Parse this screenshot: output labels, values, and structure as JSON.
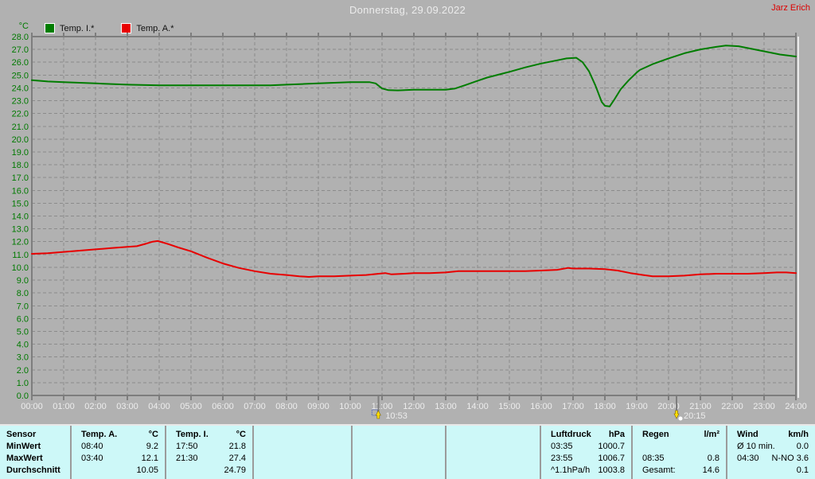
{
  "header": {
    "title": "Donnerstag, 29.09.2022",
    "user": "Jarz Erich"
  },
  "legend": {
    "unit": "°C",
    "series": [
      {
        "label": "Temp. I.*",
        "color": "#007d00"
      },
      {
        "label": "Temp. A.*",
        "color": "#e80000"
      }
    ]
  },
  "chart_data": {
    "type": "line",
    "title": "Donnerstag, 29.09.2022",
    "xlabel": "Uhrzeit",
    "ylabel": "°C",
    "xlim": [
      0,
      24
    ],
    "ylim": [
      0,
      28
    ],
    "y_tick_step": 1,
    "grid": true,
    "legend_position": "top-left",
    "x_ticks": [
      "00:00",
      "01:00",
      "02:00",
      "03:00",
      "04:00",
      "05:00",
      "06:00",
      "07:00",
      "08:00",
      "09:00",
      "10:00",
      "11:00",
      "12:00",
      "13:00",
      "14:00",
      "15:00",
      "16:00",
      "17:00",
      "18:00",
      "19:00",
      "20:00",
      "21:00",
      "22:00",
      "23:00",
      "24:00"
    ],
    "series": [
      {
        "name": "Temp. I.*",
        "color": "#007d00",
        "points": [
          [
            0,
            24.6
          ],
          [
            0.5,
            24.5
          ],
          [
            1,
            24.45
          ],
          [
            1.5,
            24.4
          ],
          [
            2,
            24.35
          ],
          [
            2.5,
            24.3
          ],
          [
            3,
            24.25
          ],
          [
            4,
            24.2
          ],
          [
            5,
            24.2
          ],
          [
            6,
            24.2
          ],
          [
            7,
            24.2
          ],
          [
            7.5,
            24.2
          ],
          [
            8,
            24.25
          ],
          [
            8.5,
            24.3
          ],
          [
            9,
            24.35
          ],
          [
            9.5,
            24.4
          ],
          [
            10,
            24.45
          ],
          [
            10.6,
            24.45
          ],
          [
            10.8,
            24.35
          ],
          [
            11,
            23.95
          ],
          [
            11.2,
            23.82
          ],
          [
            11.5,
            23.8
          ],
          [
            12,
            23.85
          ],
          [
            12.5,
            23.85
          ],
          [
            13,
            23.85
          ],
          [
            13.3,
            23.95
          ],
          [
            13.6,
            24.2
          ],
          [
            14,
            24.55
          ],
          [
            14.3,
            24.8
          ],
          [
            15,
            25.25
          ],
          [
            15.5,
            25.6
          ],
          [
            16,
            25.9
          ],
          [
            16.5,
            26.15
          ],
          [
            16.8,
            26.3
          ],
          [
            17.1,
            26.35
          ],
          [
            17.3,
            26.0
          ],
          [
            17.5,
            25.3
          ],
          [
            17.7,
            24.2
          ],
          [
            17.9,
            22.9
          ],
          [
            18,
            22.6
          ],
          [
            18.15,
            22.55
          ],
          [
            18.3,
            23.1
          ],
          [
            18.5,
            23.9
          ],
          [
            18.75,
            24.6
          ],
          [
            19,
            25.2
          ],
          [
            19.1,
            25.4
          ],
          [
            19.5,
            25.85
          ],
          [
            20,
            26.3
          ],
          [
            20.5,
            26.7
          ],
          [
            21,
            27.0
          ],
          [
            21.5,
            27.2
          ],
          [
            21.8,
            27.3
          ],
          [
            22.2,
            27.25
          ],
          [
            22.5,
            27.1
          ],
          [
            23,
            26.85
          ],
          [
            23.5,
            26.6
          ],
          [
            24,
            26.45
          ]
        ]
      },
      {
        "name": "Temp. A.*",
        "color": "#e80000",
        "points": [
          [
            0,
            11.05
          ],
          [
            0.5,
            11.1
          ],
          [
            1,
            11.2
          ],
          [
            1.5,
            11.3
          ],
          [
            2,
            11.4
          ],
          [
            2.5,
            11.5
          ],
          [
            3,
            11.6
          ],
          [
            3.3,
            11.65
          ],
          [
            3.6,
            11.85
          ],
          [
            3.8,
            12.0
          ],
          [
            3.95,
            12.05
          ],
          [
            4.1,
            11.95
          ],
          [
            4.3,
            11.8
          ],
          [
            4.6,
            11.55
          ],
          [
            5,
            11.25
          ],
          [
            5.5,
            10.75
          ],
          [
            6,
            10.3
          ],
          [
            6.5,
            9.95
          ],
          [
            7,
            9.7
          ],
          [
            7.5,
            9.5
          ],
          [
            8,
            9.4
          ],
          [
            8.4,
            9.3
          ],
          [
            8.7,
            9.25
          ],
          [
            9,
            9.3
          ],
          [
            9.5,
            9.3
          ],
          [
            10,
            9.35
          ],
          [
            10.5,
            9.4
          ],
          [
            10.9,
            9.5
          ],
          [
            11.1,
            9.55
          ],
          [
            11.3,
            9.45
          ],
          [
            11.7,
            9.5
          ],
          [
            12,
            9.55
          ],
          [
            12.5,
            9.55
          ],
          [
            13,
            9.6
          ],
          [
            13.4,
            9.7
          ],
          [
            14,
            9.7
          ],
          [
            14.5,
            9.7
          ],
          [
            15,
            9.7
          ],
          [
            15.5,
            9.7
          ],
          [
            16,
            9.75
          ],
          [
            16.5,
            9.8
          ],
          [
            16.85,
            9.95
          ],
          [
            17,
            9.9
          ],
          [
            17.5,
            9.9
          ],
          [
            18,
            9.85
          ],
          [
            18.4,
            9.75
          ],
          [
            18.8,
            9.55
          ],
          [
            19.2,
            9.4
          ],
          [
            19.5,
            9.3
          ],
          [
            20,
            9.3
          ],
          [
            20.5,
            9.35
          ],
          [
            21,
            9.45
          ],
          [
            21.5,
            9.5
          ],
          [
            22,
            9.5
          ],
          [
            22.5,
            9.5
          ],
          [
            23,
            9.55
          ],
          [
            23.4,
            9.6
          ],
          [
            23.7,
            9.6
          ],
          [
            24,
            9.55
          ]
        ]
      }
    ],
    "markers": [
      {
        "time": 10.883,
        "label": "10:53",
        "direction": "up"
      },
      {
        "time": 20.25,
        "label": "20:15",
        "direction": "down"
      }
    ]
  },
  "table": {
    "row_labels": [
      "Sensor",
      "MinWert",
      "MaxWert",
      "Durchschnitt"
    ],
    "columns": [
      {
        "header": "Temp. A.",
        "unit": "°C",
        "rows": [
          [
            "08:40",
            "9.2"
          ],
          [
            "03:40",
            "12.1"
          ],
          [
            "",
            "10.05"
          ]
        ]
      },
      {
        "header": "Temp. I.",
        "unit": "°C",
        "rows": [
          [
            "17:50",
            "21.8"
          ],
          [
            "21:30",
            "27.4"
          ],
          [
            "",
            "24.79"
          ]
        ]
      },
      {
        "header": "",
        "unit": "",
        "rows": [
          [
            "",
            ""
          ],
          [
            "",
            ""
          ],
          [
            "",
            ""
          ]
        ]
      },
      {
        "header": "",
        "unit": "",
        "rows": [
          [
            "",
            ""
          ],
          [
            "",
            ""
          ],
          [
            "",
            ""
          ]
        ]
      },
      {
        "header": "",
        "unit": "",
        "rows": [
          [
            "",
            ""
          ],
          [
            "",
            ""
          ],
          [
            "",
            ""
          ]
        ]
      },
      {
        "header": "Luftdruck",
        "unit": "hPa",
        "rows": [
          [
            "03:35",
            "1000.7"
          ],
          [
            "23:55",
            "1006.7"
          ],
          [
            "^1.1hPa/h",
            "1003.8"
          ]
        ]
      },
      {
        "header": "Regen",
        "unit": "l/m²",
        "rows": [
          [
            "",
            ""
          ],
          [
            "08:35",
            "0.8"
          ],
          [
            "Gesamt:",
            "14.6"
          ]
        ]
      },
      {
        "header": "Wind",
        "unit": "km/h",
        "rows": [
          [
            "Ø 10 min.",
            "0.0"
          ],
          [
            "04:30",
            "N-NO 3.6"
          ],
          [
            "",
            "0.1"
          ]
        ]
      }
    ]
  }
}
